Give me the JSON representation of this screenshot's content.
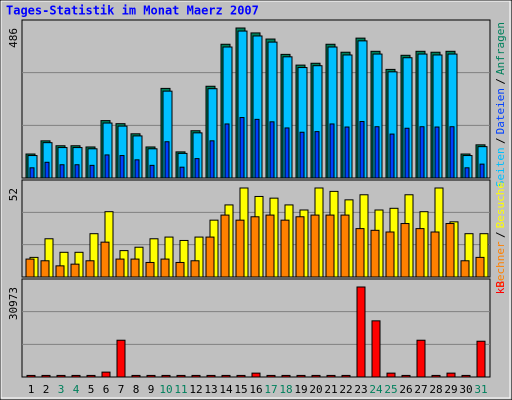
{
  "chart_data": [
    {
      "type": "bar",
      "title": "Tages-Statistik im Monat Maerz 2007",
      "title_color": "#0000ff",
      "ylim": [
        0,
        486
      ],
      "yticks": [
        486
      ],
      "grid": true,
      "legend_separator": "/",
      "series": [
        {
          "name": "Anfragen",
          "color": "#00805c",
          "values": [
            75,
            118,
            102,
            102,
            98,
            184,
            174,
            141,
            98,
            289,
            82,
            151,
            296,
            433,
            486,
            470,
            450,
            400,
            365,
            371,
            433,
            407,
            453,
            410,
            351,
            397,
            410,
            407,
            410,
            75,
            105
          ]
        },
        {
          "name": "Dateien",
          "color": "#0040ff",
          "values": [
            30,
            48,
            40,
            40,
            38,
            72,
            70,
            56,
            38,
            115,
            32,
            60,
            118,
            173,
            194,
            188,
            180,
            160,
            146,
            148,
            173,
            163,
            181,
            164,
            140,
            159,
            164,
            163,
            164,
            30,
            42
          ]
        },
        {
          "name": "Seiten",
          "color": "#00c0ff",
          "values": [
            70,
            112,
            96,
            96,
            92,
            176,
            166,
            134,
            92,
            280,
            77,
            144,
            288,
            424,
            476,
            460,
            440,
            392,
            357,
            363,
            424,
            398,
            444,
            401,
            343,
            389,
            401,
            398,
            401,
            70,
            99
          ]
        }
      ]
    },
    {
      "type": "bar",
      "ylim": [
        0,
        52
      ],
      "yticks": [
        52
      ],
      "grid": true,
      "legend_separator": "/",
      "series": [
        {
          "name": "Besuche",
          "color": "#ffff00",
          "values": [
            11,
            22,
            14,
            14,
            25,
            38,
            15,
            17,
            22,
            23,
            21,
            23,
            33,
            42,
            52,
            47,
            46,
            42,
            39,
            52,
            50,
            45,
            48,
            39,
            40,
            48,
            38,
            52,
            32,
            25,
            25
          ]
        },
        {
          "name": "Rechner",
          "color": "#ff8000",
          "values": [
            10,
            9,
            6,
            7,
            9,
            20,
            10,
            10,
            8,
            10,
            8,
            9,
            23,
            36,
            33,
            35,
            36,
            33,
            35,
            36,
            36,
            36,
            28,
            27,
            26,
            31,
            28,
            26,
            31,
            9,
            11
          ]
        }
      ]
    },
    {
      "type": "bar",
      "ylim": [
        0,
        30973
      ],
      "yticks": [
        30973
      ],
      "grid": true,
      "categories": [
        "1",
        "2",
        "3",
        "4",
        "5",
        "6",
        "7",
        "8",
        "9",
        "10",
        "11",
        "12",
        "13",
        "14",
        "15",
        "16",
        "17",
        "18",
        "19",
        "20",
        "21",
        "22",
        "23",
        "24",
        "25",
        "26",
        "27",
        "28",
        "29",
        "30",
        "31"
      ],
      "category_colors": [
        "#000000",
        "#000000",
        "#00805c",
        "#00805c",
        "#000000",
        "#000000",
        "#000000",
        "#000000",
        "#000000",
        "#00805c",
        "#00805c",
        "#000000",
        "#000000",
        "#000000",
        "#000000",
        "#000000",
        "#00805c",
        "#00805c",
        "#000000",
        "#000000",
        "#000000",
        "#000000",
        "#000000",
        "#00805c",
        "#00805c",
        "#000000",
        "#000000",
        "#000000",
        "#000000",
        "#000000",
        "#00805c"
      ],
      "series": [
        {
          "name": "kB",
          "color": "#ff0000",
          "values": [
            200,
            200,
            200,
            200,
            200,
            1350,
            12450,
            200,
            200,
            200,
            200,
            200,
            200,
            200,
            200,
            1000,
            200,
            200,
            200,
            200,
            200,
            200,
            30973,
            19200,
            1000,
            200,
            12450,
            200,
            1000,
            200,
            12100
          ]
        }
      ]
    }
  ]
}
